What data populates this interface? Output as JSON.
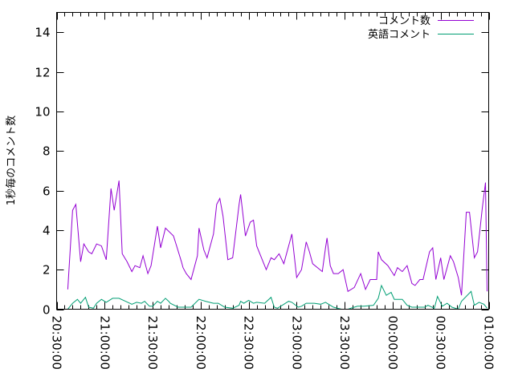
{
  "chart_data": {
    "type": "line",
    "title": "",
    "xlabel": "",
    "ylabel": "1秒毎のコメント数",
    "xlim": [
      "20:30:00",
      "01:00:00"
    ],
    "ylim": [
      0,
      15
    ],
    "x_ticks": [
      "20:30:00",
      "21:00:00",
      "21:30:00",
      "22:00:00",
      "22:30:00",
      "23:00:00",
      "23:30:00",
      "00:00:00",
      "00:30:00",
      "01:00:00"
    ],
    "y_ticks": [
      0,
      2,
      4,
      6,
      8,
      10,
      12,
      14
    ],
    "grid": false,
    "legend": "top-right",
    "series": [
      {
        "name": "コメント数",
        "color": "#9400d3",
        "points": [
          [
            "20:37",
            1.0
          ],
          [
            "20:40",
            5.0
          ],
          [
            "20:42",
            5.3
          ],
          [
            "20:45",
            2.4
          ],
          [
            "20:47",
            3.3
          ],
          [
            "20:50",
            2.9
          ],
          [
            "20:52",
            2.8
          ],
          [
            "20:55",
            3.3
          ],
          [
            "20:58",
            3.2
          ],
          [
            "21:01",
            2.5
          ],
          [
            "21:04",
            6.1
          ],
          [
            "21:06",
            5.0
          ],
          [
            "21:09",
            6.5
          ],
          [
            "21:11",
            2.8
          ],
          [
            "21:14",
            2.4
          ],
          [
            "21:17",
            1.9
          ],
          [
            "21:19",
            2.2
          ],
          [
            "21:22",
            2.1
          ],
          [
            "21:24",
            2.7
          ],
          [
            "21:27",
            1.8
          ],
          [
            "21:29",
            2.2
          ],
          [
            "21:33",
            4.2
          ],
          [
            "21:35",
            3.1
          ],
          [
            "21:38",
            4.1
          ],
          [
            "21:43",
            3.7
          ],
          [
            "21:45",
            3.2
          ],
          [
            "21:48",
            2.4
          ],
          [
            "21:49",
            2.1
          ],
          [
            "21:51",
            1.8
          ],
          [
            "21:54",
            1.5
          ],
          [
            "21:58",
            2.7
          ],
          [
            "21:59",
            4.1
          ],
          [
            "22:02",
            3.0
          ],
          [
            "22:04",
            2.6
          ],
          [
            "22:08",
            3.8
          ],
          [
            "22:10",
            5.3
          ],
          [
            "22:12",
            5.6
          ],
          [
            "22:14",
            4.7
          ],
          [
            "22:17",
            2.5
          ],
          [
            "22:20",
            2.6
          ],
          [
            "22:24",
            5.3
          ],
          [
            "22:25",
            5.8
          ],
          [
            "22:28",
            3.7
          ],
          [
            "22:31",
            4.4
          ],
          [
            "22:33",
            4.5
          ],
          [
            "22:35",
            3.2
          ],
          [
            "22:41",
            2.0
          ],
          [
            "22:44",
            2.6
          ],
          [
            "22:46",
            2.5
          ],
          [
            "22:49",
            2.8
          ],
          [
            "22:52",
            2.3
          ],
          [
            "22:56",
            3.5
          ],
          [
            "22:57",
            3.8
          ],
          [
            "23:00",
            1.6
          ],
          [
            "23:03",
            2.0
          ],
          [
            "23:06",
            3.4
          ],
          [
            "23:08",
            2.9
          ],
          [
            "23:10",
            2.3
          ],
          [
            "23:16",
            1.9
          ],
          [
            "23:18",
            3.1
          ],
          [
            "23:19",
            3.6
          ],
          [
            "23:21",
            2.2
          ],
          [
            "23:23",
            1.8
          ],
          [
            "23:26",
            1.8
          ],
          [
            "23:29",
            2.0
          ],
          [
            "23:32",
            0.9
          ],
          [
            "23:36",
            1.1
          ],
          [
            "23:40",
            1.8
          ],
          [
            "23:43",
            1.0
          ],
          [
            "23:46",
            1.5
          ],
          [
            "23:50",
            1.5
          ],
          [
            "23:51",
            2.9
          ],
          [
            "23:53",
            2.5
          ],
          [
            "23:57",
            2.2
          ],
          [
            "00:01",
            1.7
          ],
          [
            "00:03",
            2.1
          ],
          [
            "00:06",
            1.9
          ],
          [
            "00:09",
            2.2
          ],
          [
            "00:12",
            1.3
          ],
          [
            "00:14",
            1.2
          ],
          [
            "00:17",
            1.5
          ],
          [
            "00:19",
            1.5
          ],
          [
            "00:23",
            2.9
          ],
          [
            "00:25",
            3.1
          ],
          [
            "00:27",
            1.5
          ],
          [
            "00:30",
            2.6
          ],
          [
            "00:32",
            1.5
          ],
          [
            "00:36",
            2.7
          ],
          [
            "00:38",
            2.4
          ],
          [
            "00:41",
            1.6
          ],
          [
            "00:43",
            0.7
          ],
          [
            "00:46",
            4.9
          ],
          [
            "00:48",
            4.9
          ],
          [
            "00:51",
            2.6
          ],
          [
            "00:53",
            2.9
          ],
          [
            "00:56",
            5.1
          ],
          [
            "00:58",
            6.4
          ],
          [
            "00:59",
            0.9
          ]
        ]
      },
      {
        "name": "英語コメント",
        "color": "#009e73",
        "points": [
          [
            "20:37",
            0
          ],
          [
            "20:40",
            0.3
          ],
          [
            "20:43",
            0.5
          ],
          [
            "20:45",
            0.3
          ],
          [
            "20:48",
            0.6
          ],
          [
            "20:50",
            0.1
          ],
          [
            "20:53",
            0.05
          ],
          [
            "20:55",
            0.3
          ],
          [
            "20:58",
            0.5
          ],
          [
            "21:01",
            0.35
          ],
          [
            "21:05",
            0.55
          ],
          [
            "21:09",
            0.55
          ],
          [
            "21:13",
            0.4
          ],
          [
            "21:17",
            0.25
          ],
          [
            "21:20",
            0.35
          ],
          [
            "21:23",
            0.3
          ],
          [
            "21:25",
            0.4
          ],
          [
            "21:28",
            0.15
          ],
          [
            "21:30",
            0.15
          ],
          [
            "21:33",
            0.4
          ],
          [
            "21:35",
            0.3
          ],
          [
            "21:38",
            0.55
          ],
          [
            "21:40",
            0.4
          ],
          [
            "21:41",
            0.3
          ],
          [
            "21:46",
            0.1
          ],
          [
            "21:50",
            0.1
          ],
          [
            "21:54",
            0.1
          ],
          [
            "21:59",
            0.5
          ],
          [
            "22:03",
            0.4
          ],
          [
            "22:08",
            0.3
          ],
          [
            "22:11",
            0.3
          ],
          [
            "22:15",
            0.1
          ],
          [
            "22:20",
            0.05
          ],
          [
            "22:24",
            0.2
          ],
          [
            "22:25",
            0.4
          ],
          [
            "22:27",
            0.3
          ],
          [
            "22:30",
            0.45
          ],
          [
            "22:33",
            0.3
          ],
          [
            "22:35",
            0.35
          ],
          [
            "22:40",
            0.3
          ],
          [
            "22:44",
            0.6
          ],
          [
            "22:46",
            0.1
          ],
          [
            "22:48",
            0.05
          ],
          [
            "22:51",
            0.2
          ],
          [
            "22:55",
            0.4
          ],
          [
            "22:57",
            0.35
          ],
          [
            "23:01",
            0.1
          ],
          [
            "23:03",
            0.15
          ],
          [
            "23:06",
            0.3
          ],
          [
            "23:11",
            0.3
          ],
          [
            "23:15",
            0.25
          ],
          [
            "23:18",
            0.35
          ],
          [
            "23:21",
            0.2
          ],
          [
            "23:23",
            0.1
          ],
          [
            "23:28",
            0
          ],
          [
            "23:32",
            0
          ],
          [
            "23:36",
            0.1
          ],
          [
            "23:38",
            0.15
          ],
          [
            "23:42",
            0.15
          ],
          [
            "23:48",
            0.2
          ],
          [
            "23:51",
            0.55
          ],
          [
            "23:53",
            1.2
          ],
          [
            "23:56",
            0.7
          ],
          [
            "23:59",
            0.85
          ],
          [
            "00:01",
            0.5
          ],
          [
            "00:06",
            0.5
          ],
          [
            "00:09",
            0.2
          ],
          [
            "00:12",
            0.1
          ],
          [
            "00:16",
            0.1
          ],
          [
            "00:20",
            0.1
          ],
          [
            "00:22",
            0.2
          ],
          [
            "00:26",
            0.05
          ],
          [
            "00:28",
            0.65
          ],
          [
            "00:31",
            0.15
          ],
          [
            "00:34",
            0.3
          ],
          [
            "00:37",
            0.1
          ],
          [
            "00:41",
            0
          ],
          [
            "00:43",
            0.4
          ],
          [
            "00:49",
            0.9
          ],
          [
            "00:51",
            0.2
          ],
          [
            "00:54",
            0.35
          ],
          [
            "00:57",
            0.25
          ],
          [
            "00:59",
            0.05
          ]
        ]
      }
    ]
  }
}
